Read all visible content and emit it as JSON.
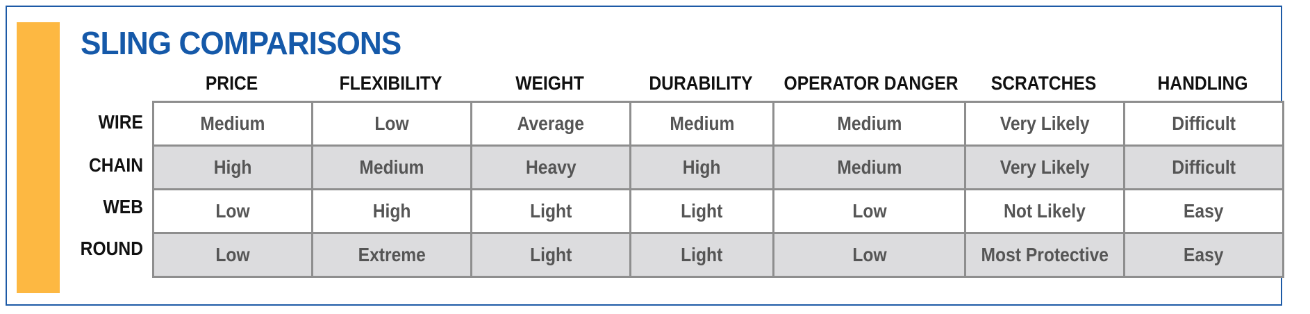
{
  "title": "SLING COMPARISONS",
  "columns": [
    "PRICE",
    "FLEXIBILITY",
    "WEIGHT",
    "DURABILITY",
    "OPERATOR DANGER",
    "SCRATCHES",
    "HANDLING"
  ],
  "rows": [
    {
      "label": "WIRE",
      "values": [
        "Medium",
        "Low",
        "Average",
        "Medium",
        "Medium",
        "Very Likely",
        "Difficult"
      ]
    },
    {
      "label": "CHAIN",
      "values": [
        "High",
        "Medium",
        "Heavy",
        "High",
        "Medium",
        "Very Likely",
        "Difficult"
      ]
    },
    {
      "label": "WEB",
      "values": [
        "Low",
        "High",
        "Light",
        "Light",
        "Low",
        "Not Likely",
        "Easy"
      ]
    },
    {
      "label": "ROUND",
      "values": [
        "Low",
        "Extreme",
        "Light",
        "Light",
        "Low",
        "Most Protective",
        "Easy"
      ]
    }
  ],
  "colors": {
    "frame": "#1d5aa6",
    "title": "#1559a9",
    "accent": "#fdb842",
    "cell_border": "#8e8e8e",
    "shaded_row": "#dcdcde",
    "cell_text": "#555555"
  }
}
